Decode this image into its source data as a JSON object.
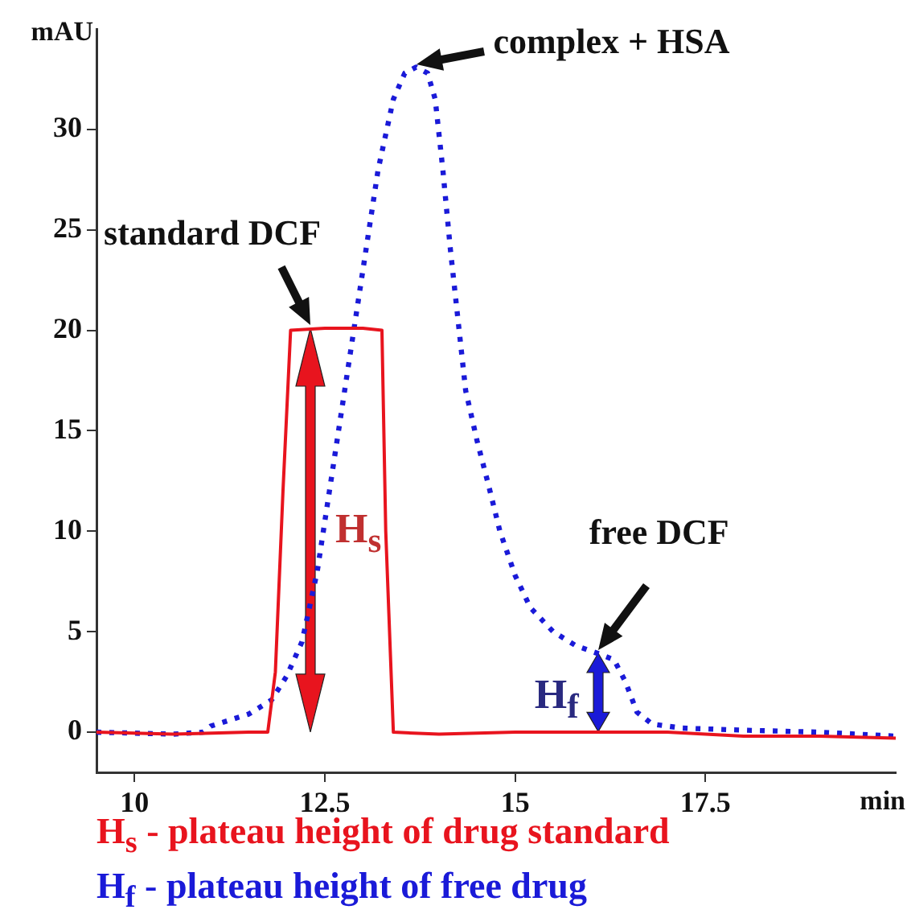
{
  "chart_data": {
    "type": "line",
    "xlabel": "min",
    "ylabel": "mAU",
    "xlim": [
      9.5,
      20
    ],
    "xticks": [
      10,
      12.5,
      15,
      17.5
    ],
    "ylim": [
      -2,
      35
    ],
    "yticks": [
      0,
      5,
      10,
      15,
      20,
      25,
      30
    ],
    "grid": false,
    "legend": false,
    "marker": "none",
    "series": [
      {
        "color": "#e8141e",
        "line_style": "solid",
        "x": [
          9.5,
          10.5,
          11.5,
          11.75,
          11.85,
          11.95,
          12.05,
          12.5,
          13.0,
          13.25,
          13.3,
          13.4,
          14,
          15,
          16,
          17,
          18,
          19,
          20
        ],
        "values": [
          0,
          -0.1,
          0,
          0,
          3,
          12,
          20,
          20.1,
          20.1,
          20,
          10,
          0,
          -0.1,
          0,
          0,
          0,
          -0.2,
          -0.2,
          -0.3
        ]
      },
      {
        "color": "#1a1ad8",
        "line_style": "dotted",
        "x": [
          9.5,
          10.5,
          10.9,
          11.0,
          11.5,
          11.8,
          12.0,
          12.2,
          12.4,
          12.6,
          12.8,
          13.0,
          13.2,
          13.4,
          13.55,
          13.7,
          13.85,
          13.95,
          14.05,
          14.15,
          14.25,
          14.35,
          14.5,
          14.65,
          14.8,
          15.0,
          15.2,
          15.5,
          15.8,
          16.1,
          16.3,
          16.45,
          16.6,
          16.8,
          17.2,
          18,
          19,
          20
        ],
        "values": [
          0,
          -0.1,
          0,
          0.3,
          0.9,
          1.6,
          2.8,
          4.5,
          8,
          13,
          18,
          23,
          28,
          31.5,
          32.8,
          33.1,
          32.8,
          31.5,
          28,
          24,
          20.5,
          17,
          14.5,
          12.3,
          10,
          7.8,
          6.2,
          5,
          4.3,
          3.9,
          3.6,
          2.5,
          1,
          0.4,
          0.2,
          0.1,
          0,
          -0.2
        ]
      }
    ],
    "annotations": [
      {
        "text": "complex + HSA",
        "x": 13.7,
        "y": 33.1
      },
      {
        "text": "standard DCF",
        "x": 12.3,
        "y": 20.1
      },
      {
        "text": "free DCF",
        "x": 16.1,
        "y": 3.9
      },
      "H$_{s}$",
      "H$_{f}$",
      "H$_{s}$ - plateau height of drug standard",
      "H$_{f}$ - plateau height of free drug"
    ]
  }
}
